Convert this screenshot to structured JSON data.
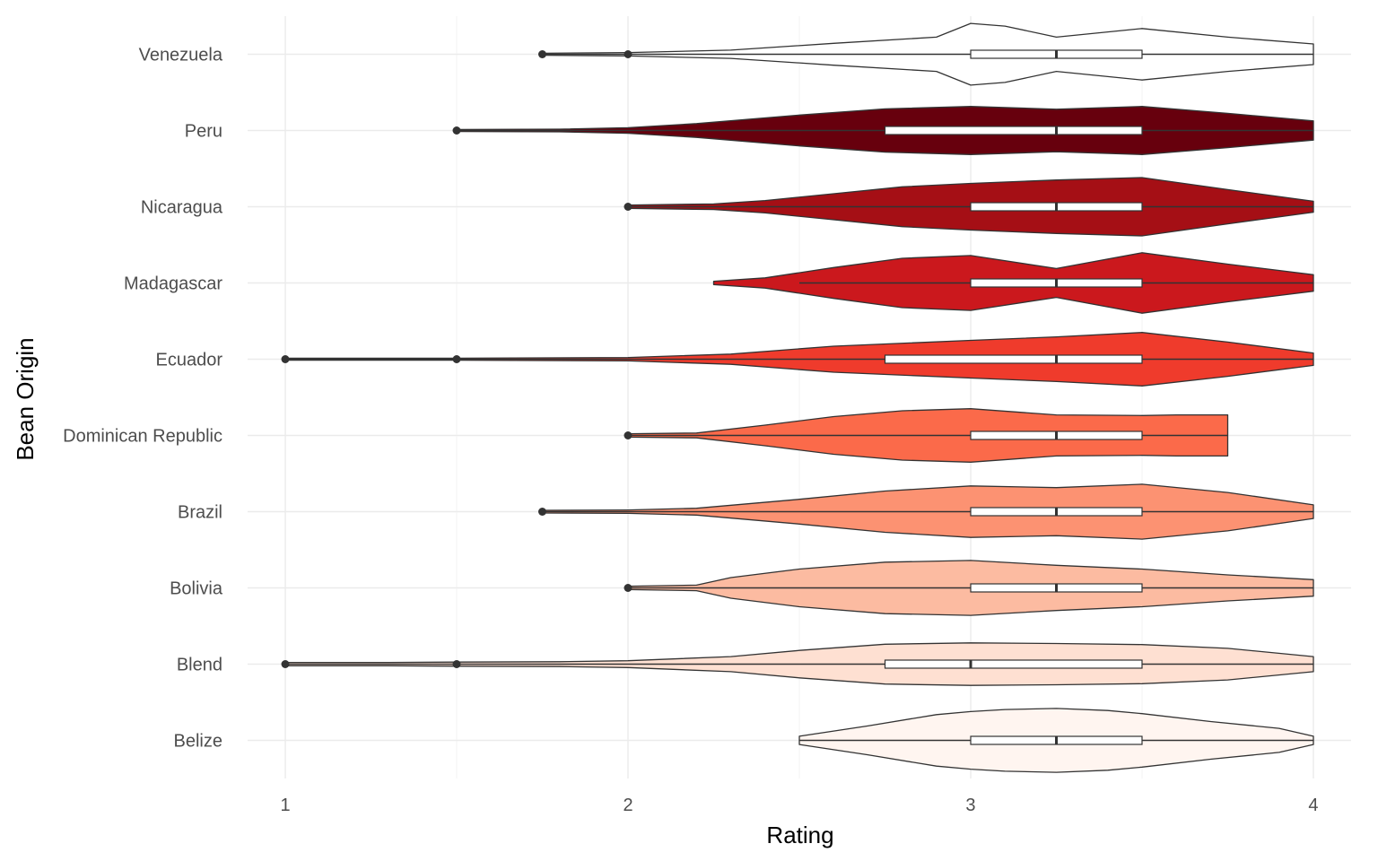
{
  "chart_data": {
    "type": "violin",
    "orientation": "horizontal",
    "xlabel": "Rating",
    "ylabel": "Bean Origin",
    "xlim": [
      0.89,
      4.11
    ],
    "x_ticks": [
      "1",
      "2",
      "3",
      "4"
    ],
    "grid": true,
    "legend": "none",
    "outline_color": "#333333",
    "categories": [
      "Belize",
      "Blend",
      "Bolivia",
      "Brazil",
      "Dominican Republic",
      "Ecuador",
      "Madagascar",
      "Nicaragua",
      "Peru",
      "Venezuela"
    ],
    "series": [
      {
        "category": "Belize",
        "fill": "#fff5f0",
        "density": [
          [
            2.5,
            0.12
          ],
          [
            2.7,
            0.42
          ],
          [
            2.9,
            0.75
          ],
          [
            3.0,
            0.84
          ],
          [
            3.1,
            0.9
          ],
          [
            3.25,
            0.93
          ],
          [
            3.4,
            0.87
          ],
          [
            3.5,
            0.78
          ],
          [
            3.7,
            0.55
          ],
          [
            3.9,
            0.35
          ],
          [
            4.0,
            0.12
          ]
        ],
        "box": {
          "q1": 3.0,
          "median": 3.25,
          "q3": 3.5,
          "whisker_low": 2.5,
          "whisker_high": 4.0
        },
        "outliers": []
      },
      {
        "category": "Blend",
        "fill": "#fee0d2",
        "density": [
          [
            1.0,
            0.05
          ],
          [
            1.3,
            0.05
          ],
          [
            1.5,
            0.06
          ],
          [
            1.8,
            0.07
          ],
          [
            2.0,
            0.1
          ],
          [
            2.3,
            0.22
          ],
          [
            2.5,
            0.4
          ],
          [
            2.75,
            0.58
          ],
          [
            3.0,
            0.62
          ],
          [
            3.25,
            0.6
          ],
          [
            3.5,
            0.57
          ],
          [
            3.75,
            0.46
          ],
          [
            4.0,
            0.22
          ]
        ],
        "box": {
          "q1": 2.75,
          "median": 3.0,
          "q3": 3.5,
          "whisker_low": 2.0,
          "whisker_high": 4.0
        },
        "outliers": [
          1.0,
          1.5
        ]
      },
      {
        "category": "Bolivia",
        "fill": "#fcbba1",
        "density": [
          [
            2.0,
            0.05
          ],
          [
            2.2,
            0.08
          ],
          [
            2.3,
            0.3
          ],
          [
            2.5,
            0.55
          ],
          [
            2.75,
            0.75
          ],
          [
            3.0,
            0.8
          ],
          [
            3.25,
            0.66
          ],
          [
            3.5,
            0.55
          ],
          [
            3.75,
            0.38
          ],
          [
            4.0,
            0.24
          ]
        ],
        "box": {
          "q1": 3.0,
          "median": 3.25,
          "q3": 3.5,
          "whisker_low": 2.5,
          "whisker_high": 4.0
        },
        "outliers": [
          2.0
        ]
      },
      {
        "category": "Brazil",
        "fill": "#fc9272",
        "density": [
          [
            1.75,
            0.04
          ],
          [
            2.0,
            0.05
          ],
          [
            2.2,
            0.1
          ],
          [
            2.5,
            0.36
          ],
          [
            2.75,
            0.6
          ],
          [
            3.0,
            0.75
          ],
          [
            3.25,
            0.7
          ],
          [
            3.5,
            0.8
          ],
          [
            3.75,
            0.56
          ],
          [
            4.0,
            0.2
          ]
        ],
        "box": {
          "q1": 3.0,
          "median": 3.25,
          "q3": 3.5,
          "whisker_low": 2.5,
          "whisker_high": 4.0
        },
        "outliers": [
          1.75
        ]
      },
      {
        "category": "Dominican Republic",
        "fill": "#fb6a4a",
        "density": [
          [
            2.0,
            0.05
          ],
          [
            2.2,
            0.07
          ],
          [
            2.4,
            0.3
          ],
          [
            2.6,
            0.55
          ],
          [
            2.8,
            0.72
          ],
          [
            3.0,
            0.78
          ],
          [
            3.25,
            0.6
          ],
          [
            3.5,
            0.58
          ],
          [
            3.6,
            0.6
          ],
          [
            3.75,
            0.6
          ]
        ],
        "box": {
          "q1": 3.0,
          "median": 3.25,
          "q3": 3.5,
          "whisker_low": 2.5,
          "whisker_high": 3.75
        },
        "outliers": [
          2.0
        ]
      },
      {
        "category": "Ecuador",
        "fill": "#ef3b2c",
        "density": [
          [
            1.0,
            0.03
          ],
          [
            1.5,
            0.03
          ],
          [
            2.0,
            0.05
          ],
          [
            2.3,
            0.15
          ],
          [
            2.6,
            0.38
          ],
          [
            3.0,
            0.55
          ],
          [
            3.25,
            0.65
          ],
          [
            3.5,
            0.78
          ],
          [
            3.75,
            0.5
          ],
          [
            4.0,
            0.18
          ]
        ],
        "box": {
          "q1": 2.75,
          "median": 3.25,
          "q3": 3.5,
          "whisker_low": 2.0,
          "whisker_high": 4.0
        },
        "outliers": [
          1.0,
          1.5
        ]
      },
      {
        "category": "Madagascar",
        "fill": "#cb181d",
        "density": [
          [
            2.25,
            0.05
          ],
          [
            2.4,
            0.15
          ],
          [
            2.6,
            0.45
          ],
          [
            2.8,
            0.72
          ],
          [
            3.0,
            0.8
          ],
          [
            3.25,
            0.42
          ],
          [
            3.5,
            0.88
          ],
          [
            3.75,
            0.55
          ],
          [
            4.0,
            0.24
          ]
        ],
        "box": {
          "q1": 3.0,
          "median": 3.25,
          "q3": 3.5,
          "whisker_low": 2.5,
          "whisker_high": 4.0
        },
        "outliers": []
      },
      {
        "category": "Nicaragua",
        "fill": "#a50f15",
        "density": [
          [
            2.0,
            0.05
          ],
          [
            2.25,
            0.08
          ],
          [
            2.4,
            0.18
          ],
          [
            2.6,
            0.38
          ],
          [
            2.8,
            0.58
          ],
          [
            3.0,
            0.68
          ],
          [
            3.25,
            0.78
          ],
          [
            3.5,
            0.85
          ],
          [
            3.75,
            0.5
          ],
          [
            4.0,
            0.16
          ]
        ],
        "box": {
          "q1": 3.0,
          "median": 3.25,
          "q3": 3.5,
          "whisker_low": 2.25,
          "whisker_high": 4.0
        },
        "outliers": [
          2.0
        ]
      },
      {
        "category": "Peru",
        "fill": "#67000d",
        "density": [
          [
            1.5,
            0.03
          ],
          [
            1.8,
            0.04
          ],
          [
            2.0,
            0.08
          ],
          [
            2.2,
            0.2
          ],
          [
            2.5,
            0.45
          ],
          [
            2.75,
            0.63
          ],
          [
            3.0,
            0.7
          ],
          [
            3.25,
            0.62
          ],
          [
            3.5,
            0.7
          ],
          [
            3.75,
            0.5
          ],
          [
            4.0,
            0.28
          ]
        ],
        "box": {
          "q1": 2.75,
          "median": 3.25,
          "q3": 3.5,
          "whisker_low": 2.0,
          "whisker_high": 4.0
        },
        "outliers": [
          1.5
        ]
      },
      {
        "category": "Venezuela",
        "fill": "#ffffff",
        "density": [
          [
            1.75,
            0.03
          ],
          [
            2.0,
            0.05
          ],
          [
            2.3,
            0.12
          ],
          [
            2.6,
            0.32
          ],
          [
            2.9,
            0.5
          ],
          [
            3.0,
            0.9
          ],
          [
            3.1,
            0.82
          ],
          [
            3.25,
            0.5
          ],
          [
            3.5,
            0.75
          ],
          [
            3.75,
            0.5
          ],
          [
            4.0,
            0.3
          ]
        ],
        "box": {
          "q1": 3.0,
          "median": 3.25,
          "q3": 3.5,
          "whisker_low": 2.25,
          "whisker_high": 4.0
        },
        "outliers": [
          1.75,
          2.0
        ]
      }
    ]
  }
}
